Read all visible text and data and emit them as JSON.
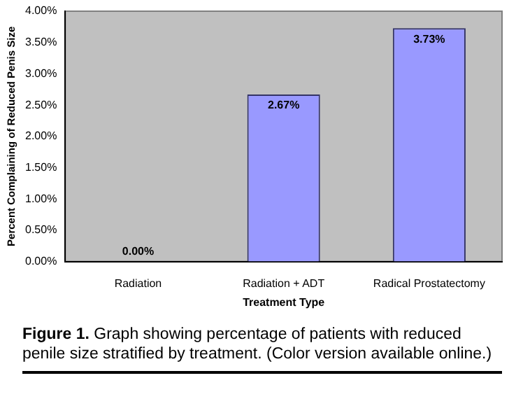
{
  "chart_data": {
    "type": "bar",
    "xlabel": "Treatment Type",
    "ylabel": "Percent Complaining of Reduced Penis Size",
    "categories": [
      "Radiation",
      "Radiation + ADT",
      "Radical Prostatectomy"
    ],
    "series": [
      {
        "color": "#9999ff",
        "values": [
          0,
          2.67,
          3.73
        ],
        "value_labels": [
          "0.00%",
          "2.67%",
          "3.73%"
        ]
      }
    ],
    "ylim": [
      0,
      4
    ],
    "yticks": [
      {
        "value": 0,
        "label": "0.00%"
      },
      {
        "value": 0.5,
        "label": "0.50%"
      },
      {
        "value": 1,
        "label": "1.00%"
      },
      {
        "value": 1.5,
        "label": "1.50%"
      },
      {
        "value": 2,
        "label": "2.00%"
      },
      {
        "value": 2.5,
        "label": "2.50%"
      },
      {
        "value": 3,
        "label": "3.00%"
      },
      {
        "value": 3.5,
        "label": "3.50%"
      },
      {
        "value": 4,
        "label": "4.00%"
      }
    ],
    "grid": false,
    "legend": false,
    "annotations": [
      "Figure 1. Graph showing percentage of patients with reduced penile size stratified by treatment. (Color version available online.)"
    ]
  }
}
